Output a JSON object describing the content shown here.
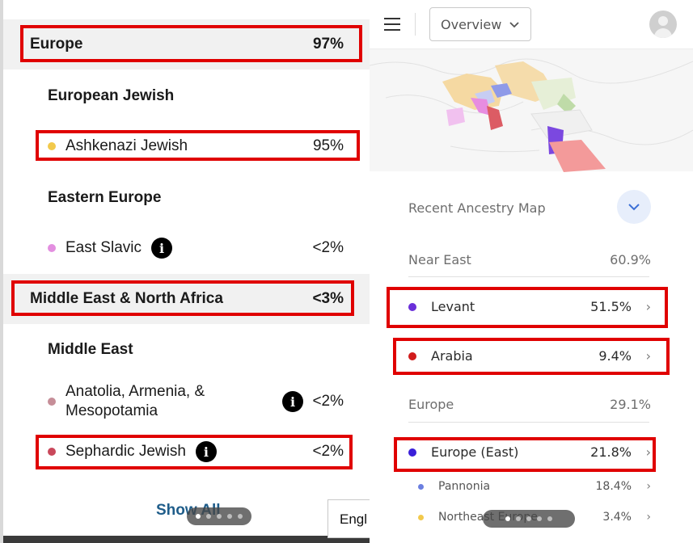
{
  "left": {
    "groups": [
      {
        "label": "Europe",
        "pct": "97%"
      },
      {
        "label": "Middle East & North Africa",
        "pct": "<3%"
      }
    ],
    "subheads": [
      "European Jewish",
      "Eastern Europe",
      "Middle East"
    ],
    "items": [
      {
        "label": "Ashkenazi Jewish",
        "pct": "95%",
        "color": "#f2c94c"
      },
      {
        "label": "East Slavic",
        "pct": "<2%",
        "color": "#e38fe0"
      },
      {
        "label_line1": "Anatolia, Armenia, &",
        "label_line2": "Mesopotamia",
        "pct": "<2%",
        "color": "#c68e98"
      },
      {
        "label": "Sephardic Jewish",
        "pct": "<2%",
        "color": "#c9485b"
      }
    ],
    "show_all": "Show All",
    "language_partial": "Engl"
  },
  "right": {
    "view_select": "Overview",
    "recent_map_label": "Recent Ancestry Map",
    "sections": [
      {
        "label": "Near East",
        "pct": "60.9%"
      },
      {
        "label": "Europe",
        "pct": "29.1%"
      }
    ],
    "items": [
      {
        "label": "Levant",
        "pct": "51.5%",
        "color": "#6a2fd9"
      },
      {
        "label": "Arabia",
        "pct": "9.4%",
        "color": "#d11b1b"
      },
      {
        "label": "Europe (East)",
        "pct": "21.8%",
        "color": "#3a1fd9"
      },
      {
        "label": "Pannonia",
        "pct": "18.4%",
        "color": "#6b7fe0"
      },
      {
        "label": "Northeast Europe",
        "pct": "3.4%",
        "color": "#f2c94c"
      }
    ]
  },
  "colors": {
    "highlight_box": "#e00000",
    "link": "#1f5d8a",
    "group_bg": "#f1f1f1",
    "expand_button_bg": "#e7eefb",
    "expand_chevron": "#3b6fd6"
  },
  "icons": [
    "info-icon",
    "menu-icon",
    "chevron-down-icon",
    "avatar-icon",
    "chevron-right-icon"
  ]
}
